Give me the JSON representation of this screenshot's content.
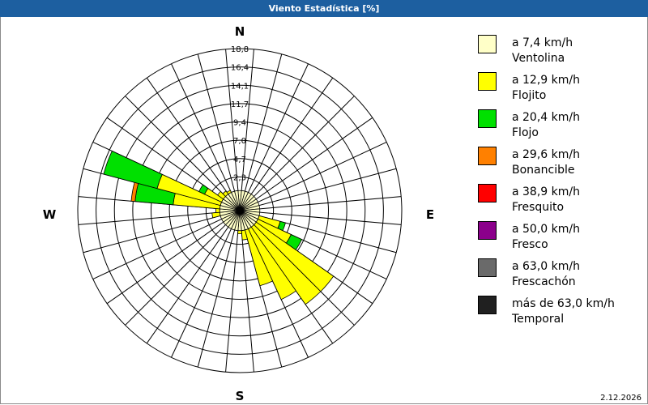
{
  "window": {
    "title": "Viento Estadística [%]"
  },
  "footer": {
    "date": "2.12.2026"
  },
  "chart_data": {
    "type": "wind-rose",
    "title": "Viento Estadística [%]",
    "compass": {
      "n": "N",
      "e": "E",
      "s": "S",
      "w": "W"
    },
    "rings": [
      "2,3",
      "4,7",
      "7,0",
      "9,4",
      "11,7",
      "14,1",
      "16,4",
      "18,8"
    ],
    "ring_values": [
      2.35,
      4.7,
      7.05,
      9.4,
      11.75,
      14.1,
      16.45,
      18.8
    ],
    "r_max": 18.8,
    "sector_count": 36,
    "sector_step_deg": 10,
    "grid": true,
    "legend_position": "right",
    "speed_classes": [
      {
        "label": "a 7,4 km/h",
        "name": "Ventolina",
        "color": "#ffffc8"
      },
      {
        "label": "a 12,9 km/h",
        "name": "Flojito",
        "color": "#ffff00"
      },
      {
        "label": "a 20,4 km/h",
        "name": "Flojo",
        "color": "#00e000"
      },
      {
        "label": "a 29,6 km/h",
        "name": "Bonancible",
        "color": "#ff8000"
      },
      {
        "label": "a 38,9 km/h",
        "name": "Fresquito",
        "color": "#ff0000"
      },
      {
        "label": "a 50,0 km/h",
        "name": "Fresco",
        "color": "#8b008b"
      },
      {
        "label": "a 63,0 km/h",
        "name": "Frescachón",
        "color": "#6a6a6a"
      },
      {
        "label": "más de 63,0 km/h",
        "name": "Temporal",
        "color": "#202020"
      }
    ],
    "sectors": [
      {
        "dir": 0,
        "values": [
          0.6,
          0,
          0,
          0,
          0,
          0,
          0,
          0
        ]
      },
      {
        "dir": 10,
        "values": [
          0.6,
          0,
          0,
          0,
          0,
          0,
          0,
          0
        ]
      },
      {
        "dir": 20,
        "values": [
          0.6,
          0,
          0,
          0,
          0,
          0,
          0,
          0
        ]
      },
      {
        "dir": 30,
        "values": [
          0.6,
          0,
          0,
          0,
          0,
          0,
          0,
          0
        ]
      },
      {
        "dir": 40,
        "values": [
          0.6,
          0,
          0,
          0,
          0,
          0,
          0,
          0
        ]
      },
      {
        "dir": 50,
        "values": [
          0.6,
          0,
          0,
          0,
          0,
          0,
          0,
          0
        ]
      },
      {
        "dir": 60,
        "values": [
          0.6,
          0,
          0,
          0,
          0,
          0,
          0,
          0
        ]
      },
      {
        "dir": 70,
        "values": [
          0.6,
          0,
          0,
          0,
          0,
          0,
          0,
          0
        ]
      },
      {
        "dir": 80,
        "values": [
          0.6,
          0,
          0,
          0,
          0,
          0,
          0,
          0
        ]
      },
      {
        "dir": 90,
        "values": [
          0.6,
          0,
          0,
          0,
          0,
          0,
          0,
          0
        ]
      },
      {
        "dir": 100,
        "values": [
          0.6,
          0,
          0,
          0,
          0,
          0,
          0,
          0
        ]
      },
      {
        "dir": 110,
        "values": [
          0.6,
          2.8,
          0.7,
          0,
          0,
          0,
          0,
          0
        ]
      },
      {
        "dir": 120,
        "values": [
          0.6,
          4.7,
          1.5,
          0,
          0,
          0,
          0,
          0
        ]
      },
      {
        "dir": 130,
        "values": [
          0.6,
          12.1,
          0,
          0,
          0,
          0,
          0,
          0
        ]
      },
      {
        "dir": 140,
        "values": [
          0.6,
          12.1,
          0,
          0,
          0,
          0,
          0,
          0
        ]
      },
      {
        "dir": 150,
        "values": [
          0.6,
          10.0,
          0,
          0,
          0,
          0,
          0,
          0
        ]
      },
      {
        "dir": 160,
        "values": [
          0.6,
          7.4,
          0,
          0,
          0,
          0,
          0,
          0
        ]
      },
      {
        "dir": 170,
        "values": [
          0.6,
          1.2,
          0,
          0,
          0,
          0,
          0,
          0
        ]
      },
      {
        "dir": 180,
        "values": [
          0.6,
          0.4,
          0,
          0,
          0,
          0,
          0,
          0
        ]
      },
      {
        "dir": 190,
        "values": [
          0.6,
          0,
          0,
          0,
          0,
          0,
          0,
          0
        ]
      },
      {
        "dir": 200,
        "values": [
          0.6,
          0,
          0,
          0,
          0,
          0,
          0,
          0
        ]
      },
      {
        "dir": 210,
        "values": [
          0.6,
          0,
          0,
          0,
          0,
          0,
          0,
          0
        ]
      },
      {
        "dir": 220,
        "values": [
          0.6,
          0,
          0,
          0,
          0,
          0,
          0,
          0
        ]
      },
      {
        "dir": 230,
        "values": [
          0.6,
          0,
          0,
          0,
          0,
          0,
          0,
          0
        ]
      },
      {
        "dir": 240,
        "values": [
          0.6,
          0,
          0,
          0,
          0,
          0,
          0,
          0
        ]
      },
      {
        "dir": 250,
        "values": [
          0.6,
          0,
          0,
          0,
          0,
          0,
          0,
          0
        ]
      },
      {
        "dir": 260,
        "values": [
          0.6,
          1.0,
          0,
          0,
          0,
          0,
          0,
          0
        ]
      },
      {
        "dir": 270,
        "values": [
          0.6,
          0.5,
          0,
          0,
          0,
          0,
          0,
          0
        ]
      },
      {
        "dir": 280,
        "values": [
          0.6,
          6.0,
          4.9,
          0.5,
          0,
          0,
          0,
          0
        ]
      },
      {
        "dir": 290,
        "values": [
          0.6,
          8.4,
          7.1,
          0,
          0,
          0,
          0,
          0
        ]
      },
      {
        "dir": 300,
        "values": [
          0.6,
          2.4,
          0.8,
          0,
          0,
          0,
          0,
          0
        ]
      },
      {
        "dir": 310,
        "values": [
          0.6,
          0.9,
          0,
          0,
          0,
          0,
          0,
          0
        ]
      },
      {
        "dir": 320,
        "values": [
          0.6,
          0.5,
          0,
          0,
          0,
          0,
          0,
          0
        ]
      },
      {
        "dir": 330,
        "values": [
          0.6,
          0.3,
          0,
          0,
          0,
          0,
          0,
          0
        ]
      },
      {
        "dir": 340,
        "values": [
          0.6,
          0,
          0,
          0,
          0,
          0,
          0,
          0
        ]
      },
      {
        "dir": 350,
        "values": [
          0.6,
          0,
          0,
          0,
          0,
          0,
          0,
          0
        ]
      }
    ]
  }
}
